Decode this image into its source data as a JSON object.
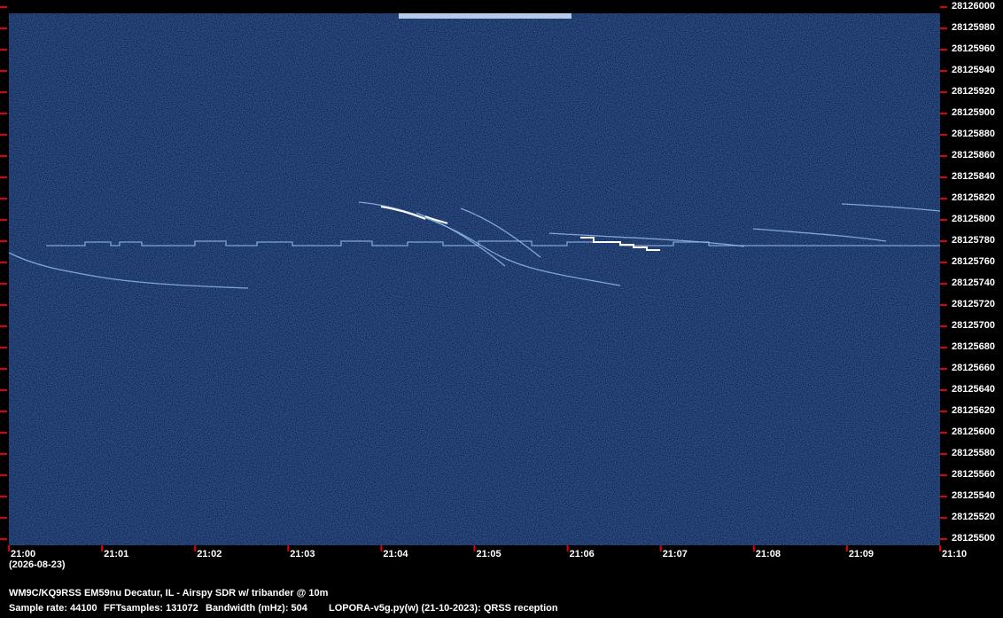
{
  "chart_data": {
    "type": "spectrogram",
    "ylim": [
      28125500,
      28126000
    ],
    "yticks": [
      28125500,
      28125520,
      28125540,
      28125560,
      28125580,
      28125600,
      28125620,
      28125640,
      28125660,
      28125680,
      28125700,
      28125720,
      28125740,
      28125760,
      28125780,
      28125800,
      28125820,
      28125840,
      28125860,
      28125880,
      28125900,
      28125920,
      28125940,
      28125960,
      28125980,
      28126000
    ],
    "categories": [
      "21:00",
      "21:01",
      "21:02",
      "21:03",
      "21:04",
      "21:05",
      "21:06",
      "21:07",
      "21:08",
      "21:09",
      "21:10"
    ],
    "date": "(2026-08-23)",
    "station": "WM9C/KQ9RSS EM59nu Decatur, IL - Airspy SDR w/ tribander @ 10m",
    "info": [
      "Sample rate: 44100",
      "FFTsamples: 131072",
      "Bandwidth (mHz): 504",
      "LOPORA-v5g.py(w) (21-10-2023): QRSS reception"
    ],
    "tick_color": "#e00000"
  }
}
